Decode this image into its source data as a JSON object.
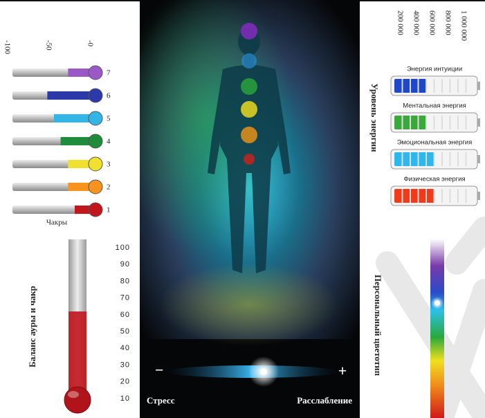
{
  "chart_data": [
    {
      "type": "bar",
      "orientation": "horizontal",
      "xlabel": "Чакры",
      "categories": [
        "7",
        "6",
        "5",
        "4",
        "3",
        "2",
        "1"
      ],
      "values": [
        -33,
        -58,
        -50,
        -42,
        -33,
        -33,
        -25
      ],
      "colors": [
        "#9b59c8",
        "#2b3aa8",
        "#33b5e8",
        "#1e8c3a",
        "#f0e030",
        "#f7931e",
        "#c0161c"
      ],
      "xlim": [
        -100,
        0
      ],
      "xticks": [
        -100,
        -50,
        {
          "value": 0,
          "label": "-0"
        }
      ]
    },
    {
      "type": "thermometer",
      "title": "Баланс ауры и чакр",
      "values": [
        62
      ],
      "color": "#c0161c",
      "ylim": [
        5,
        105
      ],
      "yticks": [
        10,
        20,
        30,
        40,
        50,
        60,
        70,
        80,
        90,
        100
      ]
    },
    {
      "type": "battery",
      "title": "Уровень энергии",
      "series": [
        {
          "name": "Энергия интуиции",
          "color": "#1f48c8",
          "values": [
            400000
          ]
        },
        {
          "name": "Ментальная энергия",
          "color": "#3aa83a",
          "values": [
            400000
          ]
        },
        {
          "name": "Эмоциональная энергия",
          "color": "#2cb8ec",
          "values": [
            500000
          ]
        },
        {
          "name": "Физическая энергия",
          "color": "#f03a1a",
          "values": [
            500000
          ]
        }
      ],
      "xlim": [
        0,
        1000000
      ],
      "xticks": [
        {
          "value": 200000,
          "label": "200 000"
        },
        {
          "value": 400000,
          "label": "400 000"
        },
        {
          "value": 600000,
          "label": "600 000"
        },
        {
          "value": 800000,
          "label": "800 000"
        },
        {
          "value": 1000000,
          "label": "1 000 000"
        }
      ]
    }
  ],
  "stress_scale": {
    "minus": "−",
    "plus": "+",
    "left_label": "Стресс",
    "right_label": "Расслабление"
  },
  "color_type": {
    "title": "Персональный цветотип"
  }
}
